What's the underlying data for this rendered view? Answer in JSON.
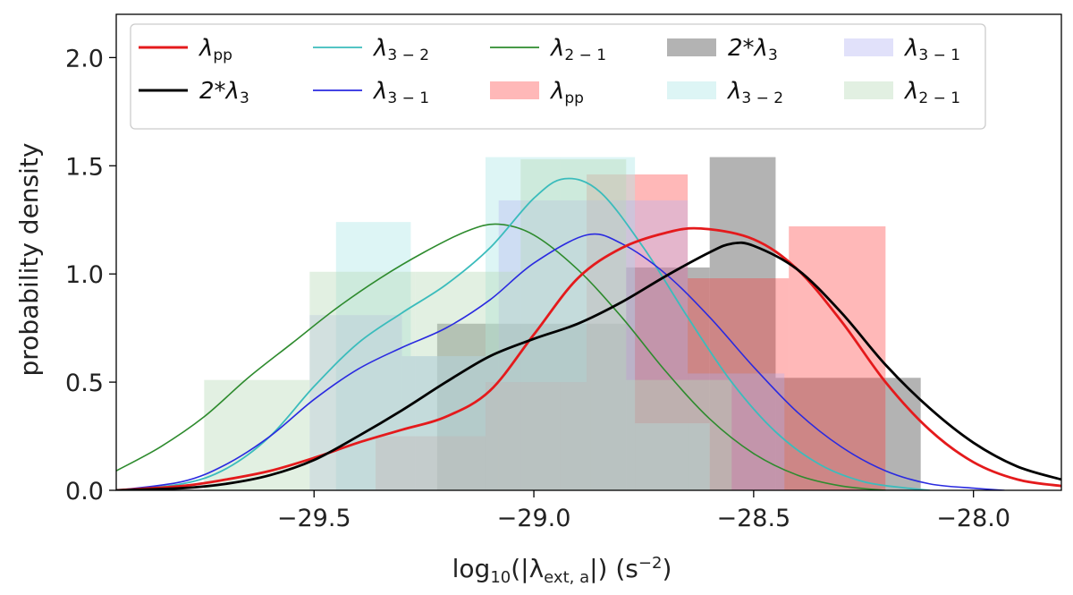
{
  "chart_data": {
    "type": "histogram+kde",
    "xlabel": "log10(|λext,a|) (s−2)",
    "ylabel": "probability density",
    "xlim": [
      -29.95,
      -27.8
    ],
    "ylim": [
      0.0,
      2.2
    ],
    "xticks": [
      -29.5,
      -29.0,
      -28.5,
      -28.0
    ],
    "xtick_labels": [
      "−29.5",
      "−29.0",
      "−28.5",
      "−28.0"
    ],
    "yticks": [
      0.0,
      0.5,
      1.0,
      1.5,
      2.0
    ],
    "ytick_labels": [
      "0.0",
      "0.5",
      "1.0",
      "1.5",
      "2.0"
    ],
    "histograms": [
      {
        "name": "2*λ3",
        "color": "#808080",
        "opacity": 0.6,
        "edges": [
          -29.22,
          -28.79,
          -28.6,
          -28.45,
          -28.2,
          -28.12
        ],
        "values": [
          0.77,
          1.03,
          1.54,
          0.52,
          0.52
        ]
      },
      {
        "name": "λpp",
        "color": "#ff3333",
        "opacity": 0.35,
        "edges": [
          -29.36,
          -29.11,
          -28.88,
          -28.65,
          -28.42,
          -28.2
        ],
        "values": [
          0.25,
          0.5,
          1.46,
          0.98,
          1.22
        ]
      },
      {
        "name": "λ3−2",
        "color": "#b3e8e8",
        "opacity": 0.45,
        "edges": [
          -29.45,
          -29.28,
          -29.11,
          -28.94,
          -28.77,
          -28.6
        ],
        "values": [
          1.24,
          0.62,
          1.54,
          1.54,
          0.31
        ]
      },
      {
        "name": "λ3−1",
        "color": "#b3b3f2",
        "opacity": 0.35,
        "edges": [
          -29.51,
          -29.3,
          -29.08,
          -28.87,
          -28.65,
          -28.43
        ],
        "values": [
          0.81,
          0.62,
          1.34,
          1.34,
          0.54
        ]
      },
      {
        "name": "λ2−1",
        "color": "#b7d9b7",
        "opacity": 0.4,
        "edges": [
          -29.75,
          -29.51,
          -29.27,
          -29.03,
          -28.79,
          -28.55
        ],
        "values": [
          0.51,
          1.01,
          1.01,
          1.53,
          0.51
        ]
      }
    ],
    "kde_lines": [
      {
        "name": "λ2−1",
        "color": "#2e8b2e",
        "width": 1.6,
        "points": [
          [
            -29.95,
            0.09
          ],
          [
            -29.85,
            0.2
          ],
          [
            -29.75,
            0.34
          ],
          [
            -29.65,
            0.52
          ],
          [
            -29.55,
            0.68
          ],
          [
            -29.45,
            0.84
          ],
          [
            -29.35,
            0.98
          ],
          [
            -29.25,
            1.1
          ],
          [
            -29.15,
            1.2
          ],
          [
            -29.08,
            1.23
          ],
          [
            -29.0,
            1.18
          ],
          [
            -28.9,
            1.02
          ],
          [
            -28.8,
            0.8
          ],
          [
            -28.7,
            0.55
          ],
          [
            -28.6,
            0.33
          ],
          [
            -28.5,
            0.17
          ],
          [
            -28.4,
            0.07
          ],
          [
            -28.3,
            0.02
          ],
          [
            -28.2,
            0.0
          ]
        ]
      },
      {
        "name": "λ3−2",
        "color": "#3bbcbc",
        "width": 1.8,
        "points": [
          [
            -29.95,
            0.0
          ],
          [
            -29.8,
            0.03
          ],
          [
            -29.7,
            0.1
          ],
          [
            -29.6,
            0.25
          ],
          [
            -29.5,
            0.48
          ],
          [
            -29.4,
            0.68
          ],
          [
            -29.3,
            0.82
          ],
          [
            -29.2,
            0.95
          ],
          [
            -29.1,
            1.12
          ],
          [
            -29.0,
            1.35
          ],
          [
            -28.93,
            1.44
          ],
          [
            -28.85,
            1.38
          ],
          [
            -28.75,
            1.12
          ],
          [
            -28.65,
            0.8
          ],
          [
            -28.55,
            0.5
          ],
          [
            -28.45,
            0.27
          ],
          [
            -28.35,
            0.12
          ],
          [
            -28.25,
            0.04
          ],
          [
            -28.15,
            0.01
          ],
          [
            -28.1,
            0.0
          ]
        ]
      },
      {
        "name": "λ3−1",
        "color": "#2a2ae0",
        "width": 1.6,
        "points": [
          [
            -29.95,
            0.0
          ],
          [
            -29.8,
            0.04
          ],
          [
            -29.7,
            0.12
          ],
          [
            -29.6,
            0.25
          ],
          [
            -29.5,
            0.42
          ],
          [
            -29.4,
            0.56
          ],
          [
            -29.3,
            0.66
          ],
          [
            -29.2,
            0.75
          ],
          [
            -29.1,
            0.88
          ],
          [
            -29.0,
            1.05
          ],
          [
            -28.88,
            1.18
          ],
          [
            -28.8,
            1.14
          ],
          [
            -28.7,
            1.0
          ],
          [
            -28.6,
            0.8
          ],
          [
            -28.5,
            0.57
          ],
          [
            -28.4,
            0.36
          ],
          [
            -28.3,
            0.2
          ],
          [
            -28.2,
            0.09
          ],
          [
            -28.1,
            0.03
          ],
          [
            -28.0,
            0.01
          ],
          [
            -27.93,
            0.0
          ]
        ]
      },
      {
        "name": "λpp",
        "color": "#e41a1c",
        "width": 2.8,
        "points": [
          [
            -29.95,
            0.0
          ],
          [
            -29.8,
            0.02
          ],
          [
            -29.7,
            0.05
          ],
          [
            -29.6,
            0.09
          ],
          [
            -29.5,
            0.15
          ],
          [
            -29.4,
            0.22
          ],
          [
            -29.3,
            0.28
          ],
          [
            -29.2,
            0.34
          ],
          [
            -29.1,
            0.46
          ],
          [
            -29.0,
            0.72
          ],
          [
            -28.9,
            0.98
          ],
          [
            -28.8,
            1.12
          ],
          [
            -28.7,
            1.19
          ],
          [
            -28.62,
            1.21
          ],
          [
            -28.5,
            1.16
          ],
          [
            -28.4,
            1.02
          ],
          [
            -28.3,
            0.78
          ],
          [
            -28.2,
            0.5
          ],
          [
            -28.1,
            0.28
          ],
          [
            -28.0,
            0.13
          ],
          [
            -27.9,
            0.05
          ],
          [
            -27.8,
            0.02
          ]
        ]
      },
      {
        "name": "2*λ3",
        "color": "#000000",
        "width": 2.8,
        "points": [
          [
            -29.95,
            0.0
          ],
          [
            -29.8,
            0.01
          ],
          [
            -29.7,
            0.03
          ],
          [
            -29.6,
            0.07
          ],
          [
            -29.5,
            0.14
          ],
          [
            -29.4,
            0.25
          ],
          [
            -29.3,
            0.37
          ],
          [
            -29.2,
            0.5
          ],
          [
            -29.1,
            0.62
          ],
          [
            -29.0,
            0.7
          ],
          [
            -28.9,
            0.77
          ],
          [
            -28.8,
            0.87
          ],
          [
            -28.7,
            0.99
          ],
          [
            -28.6,
            1.1
          ],
          [
            -28.55,
            1.14
          ],
          [
            -28.5,
            1.13
          ],
          [
            -28.4,
            1.02
          ],
          [
            -28.3,
            0.82
          ],
          [
            -28.2,
            0.58
          ],
          [
            -28.1,
            0.38
          ],
          [
            -28.0,
            0.22
          ],
          [
            -27.9,
            0.11
          ],
          [
            -27.8,
            0.05
          ]
        ]
      }
    ],
    "legend": {
      "placement": "top",
      "columns": [
        [
          {
            "type": "line",
            "color": "#e41a1c",
            "width": 3,
            "base": "λ",
            "sub": "pp"
          },
          {
            "type": "line",
            "color": "#000000",
            "width": 3,
            "base": "2*λ",
            "sub": "3"
          }
        ],
        [
          {
            "type": "line",
            "color": "#3bbcbc",
            "width": 1.8,
            "base": "λ",
            "sub": "3 − 2"
          },
          {
            "type": "line",
            "color": "#2a2ae0",
            "width": 1.8,
            "base": "λ",
            "sub": "3 − 1"
          }
        ],
        [
          {
            "type": "line",
            "color": "#2e8b2e",
            "width": 1.8,
            "base": "λ",
            "sub": "2 − 1"
          },
          {
            "type": "patch",
            "color": "#ff3333",
            "opacity": 0.35,
            "base": "λ",
            "sub": "pp"
          }
        ],
        [
          {
            "type": "patch",
            "color": "#808080",
            "opacity": 0.6,
            "base": "2*λ",
            "sub": "3"
          },
          {
            "type": "patch",
            "color": "#b3e8e8",
            "opacity": 0.45,
            "base": "λ",
            "sub": "3 − 2"
          }
        ],
        [
          {
            "type": "patch",
            "color": "#b3b3f2",
            "opacity": 0.4,
            "base": "λ",
            "sub": "3 − 1"
          },
          {
            "type": "patch",
            "color": "#b7d9b7",
            "opacity": 0.4,
            "base": "λ",
            "sub": "2 − 1"
          }
        ]
      ]
    }
  }
}
